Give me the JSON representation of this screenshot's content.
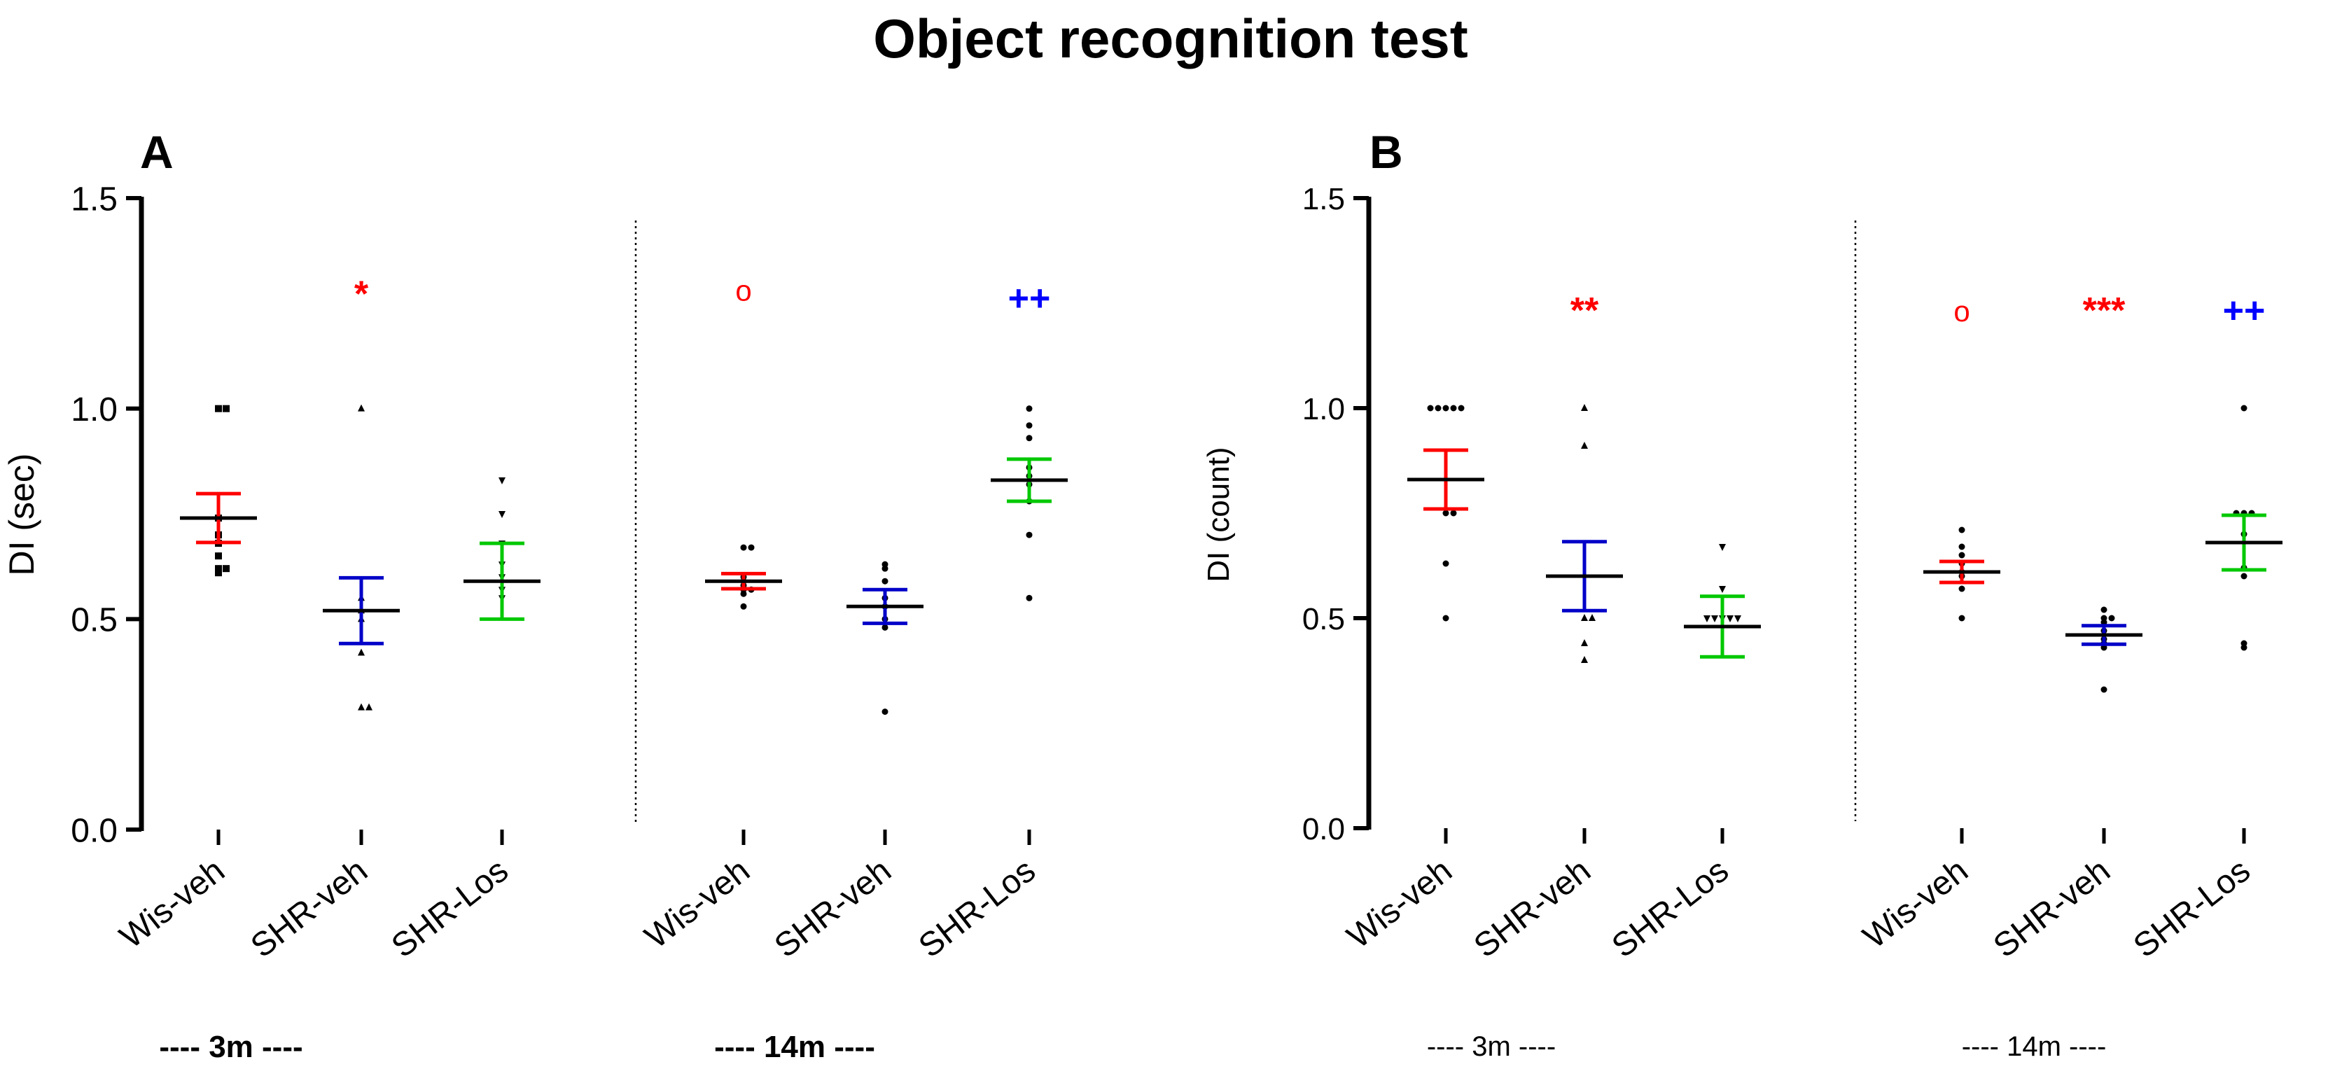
{
  "title": "Object recognition test",
  "colors": {
    "Wis-veh": "#ff0000",
    "SHR-veh": "#0000c8",
    "SHR-Los": "#00c800",
    "mean": "#000000",
    "sig_red": "#ff0000",
    "sig_blue": "#0000ff"
  },
  "chart_data": [
    {
      "type": "scatter",
      "panel": "A",
      "title": "",
      "ylabel": "DI (sec)",
      "ylim": [
        0,
        1.5
      ],
      "yticks": [
        "0.0",
        "0.5",
        "1.0",
        "1.5"
      ],
      "groups": [
        {
          "label": "---- 3m ----",
          "categories": [
            "Wis-veh",
            "SHR-veh",
            "SHR-Los"
          ],
          "series": [
            {
              "name": "Wis-veh",
              "mean": 0.74,
              "sem": 0.058,
              "points": [
                1.0,
                1.0,
                0.74,
                0.7,
                0.68,
                0.65,
                0.62,
                0.62,
                0.61
              ],
              "marker": "square",
              "annotation": ""
            },
            {
              "name": "SHR-veh",
              "mean": 0.52,
              "sem": 0.078,
              "points": [
                1.0,
                0.55,
                0.52,
                0.5,
                0.42,
                0.29,
                0.29
              ],
              "marker": "triangle",
              "annotation": "*",
              "annotation_color": "#ff0000",
              "annotation_y": 1.28
            },
            {
              "name": "SHR-Los",
              "mean": 0.59,
              "sem": 0.09,
              "points": [
                0.83,
                0.75,
                0.68,
                0.63,
                0.6,
                0.57,
                0.55
              ],
              "marker": "triangle-down",
              "annotation": ""
            }
          ]
        },
        {
          "label": "---- 14m ----",
          "categories": [
            "Wis-veh",
            "SHR-veh",
            "SHR-Los"
          ],
          "series": [
            {
              "name": "Wis-veh",
              "mean": 0.59,
              "sem": 0.018,
              "points": [
                0.67,
                0.67,
                0.6,
                0.59,
                0.58,
                0.57,
                0.57,
                0.56,
                0.53
              ],
              "marker": "circle",
              "annotation": "o",
              "annotation_color": "#ff0000",
              "annotation_y": 1.28
            },
            {
              "name": "SHR-veh",
              "mean": 0.53,
              "sem": 0.04,
              "points": [
                0.63,
                0.62,
                0.59,
                0.55,
                0.53,
                0.5,
                0.48,
                0.28
              ],
              "marker": "circle",
              "annotation": ""
            },
            {
              "name": "SHR-Los",
              "mean": 0.83,
              "sem": 0.05,
              "points": [
                1.0,
                0.96,
                0.93,
                0.86,
                0.84,
                0.82,
                0.78,
                0.7,
                0.55
              ],
              "marker": "circle",
              "annotation": "++",
              "annotation_color": "#0000ff",
              "annotation_y": 1.27
            }
          ]
        }
      ]
    },
    {
      "type": "scatter",
      "panel": "B",
      "title": "",
      "ylabel": "DI (count)",
      "ylim": [
        0,
        1.5
      ],
      "yticks": [
        "0.0",
        "0.5",
        "1.0",
        "1.5"
      ],
      "groups": [
        {
          "label": "---- 3m ----",
          "categories": [
            "Wis-veh",
            "SHR-veh",
            "SHR-Los"
          ],
          "series": [
            {
              "name": "Wis-veh",
              "mean": 0.83,
              "sem": 0.07,
              "points": [
                1.0,
                1.0,
                1.0,
                1.0,
                1.0,
                0.75,
                0.75,
                0.63,
                0.5
              ],
              "marker": "circle",
              "annotation": ""
            },
            {
              "name": "SHR-veh",
              "mean": 0.6,
              "sem": 0.082,
              "points": [
                1.0,
                0.91,
                0.5,
                0.5,
                0.44,
                0.4
              ],
              "marker": "triangle",
              "annotation": "**",
              "annotation_color": "#ff0000",
              "annotation_y": 1.24
            },
            {
              "name": "SHR-Los",
              "mean": 0.48,
              "sem": 0.072,
              "points": [
                0.67,
                0.57,
                0.5,
                0.5,
                0.5,
                0.5,
                0.5
              ],
              "marker": "triangle-down",
              "annotation": ""
            }
          ]
        },
        {
          "label": "---- 14m ----",
          "categories": [
            "Wis-veh",
            "SHR-veh",
            "SHR-Los"
          ],
          "series": [
            {
              "name": "Wis-veh",
              "mean": 0.61,
              "sem": 0.025,
              "points": [
                0.71,
                0.67,
                0.65,
                0.63,
                0.61,
                0.6,
                0.57,
                0.5
              ],
              "marker": "circle",
              "annotation": "o",
              "annotation_color": "#ff0000",
              "annotation_y": 1.23
            },
            {
              "name": "SHR-veh",
              "mean": 0.46,
              "sem": 0.022,
              "points": [
                0.52,
                0.5,
                0.5,
                0.49,
                0.47,
                0.45,
                0.44,
                0.43,
                0.33
              ],
              "marker": "circle",
              "annotation": "***",
              "annotation_color": "#ff0000",
              "annotation_y": 1.24
            },
            {
              "name": "SHR-Los",
              "mean": 0.68,
              "sem": 0.065,
              "points": [
                1.0,
                0.75,
                0.75,
                0.75,
                0.7,
                0.62,
                0.6,
                0.44,
                0.43
              ],
              "marker": "circle",
              "annotation": "++",
              "annotation_color": "#0000ff",
              "annotation_y": 1.24
            }
          ]
        }
      ]
    }
  ]
}
